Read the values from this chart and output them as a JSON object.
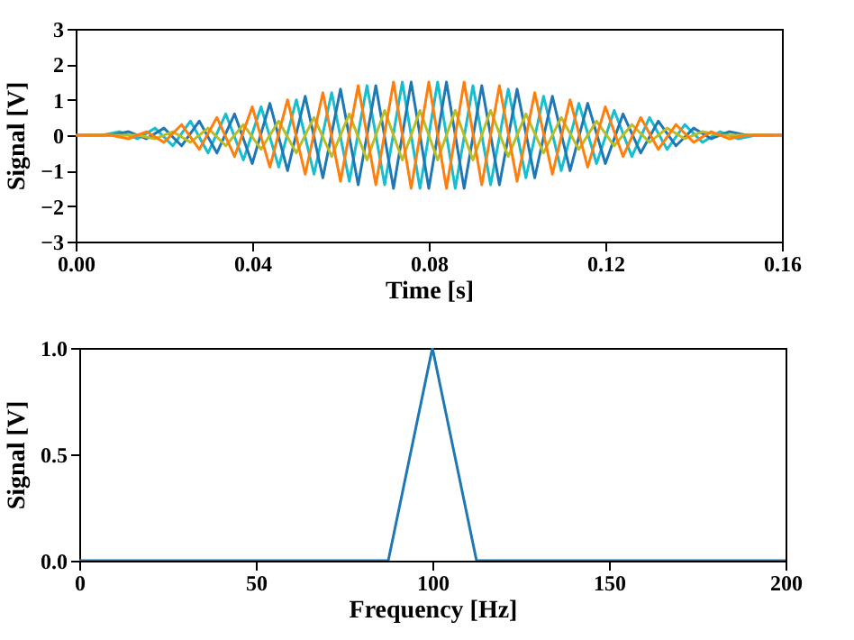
{
  "chart_data": [
    {
      "type": "line",
      "xlabel": "Time [s]",
      "ylabel": "Signal [V]",
      "xlim": [
        0,
        0.16
      ],
      "ylim": [
        -3,
        3
      ],
      "xticks": [
        {
          "value": 0,
          "label": "0.00"
        },
        0.04,
        0.08,
        0.12,
        0.16
      ],
      "yticks": [
        -3,
        -2,
        -1,
        0,
        1,
        2,
        3
      ],
      "series": [
        {
          "color": "#17becf",
          "x": [
            0.002,
            0.006,
            0.01,
            0.014,
            0.018,
            0.022,
            0.026,
            0.03,
            0.034,
            0.038,
            0.042,
            0.046,
            0.05,
            0.054,
            0.058,
            0.062,
            0.066,
            0.07,
            0.074,
            0.078,
            0.082,
            0.086,
            0.09,
            0.094,
            0.098,
            0.102,
            0.106,
            0.11,
            0.114,
            0.118,
            0.122,
            0.126,
            0.13,
            0.134,
            0.138,
            0.142,
            0.146,
            0.15,
            0.154,
            0.158
          ],
          "values": [
            0,
            0,
            0.1,
            -0.1,
            0.2,
            -0.3,
            0.4,
            -0.5,
            0.6,
            -0.7,
            0.8,
            -0.9,
            1,
            -1.1,
            1.2,
            -1.3,
            1.4,
            -1.4,
            1.5,
            -1.5,
            1.5,
            -1.5,
            1.4,
            -1.4,
            1.3,
            -1.2,
            1.1,
            -1,
            0.9,
            -0.8,
            0.7,
            -0.6,
            0.5,
            -0.4,
            0.3,
            -0.2,
            0.1,
            -0.1,
            0,
            0
          ]
        },
        {
          "color": "#1f77b4",
          "x": [
            0,
            0.004,
            0.008,
            0.012,
            0.016,
            0.02,
            0.024,
            0.028,
            0.032,
            0.036,
            0.04,
            0.044,
            0.048,
            0.052,
            0.056,
            0.06,
            0.064,
            0.068,
            0.072,
            0.076,
            0.08,
            0.084,
            0.088,
            0.092,
            0.096,
            0.1,
            0.104,
            0.108,
            0.112,
            0.116,
            0.12,
            0.124,
            0.128,
            0.132,
            0.136,
            0.14,
            0.144,
            0.148,
            0.152,
            0.156,
            0.16
          ],
          "values": [
            0,
            0,
            0,
            0.1,
            -0.1,
            0.2,
            -0.3,
            0.4,
            -0.5,
            0.6,
            -0.8,
            0.9,
            -1,
            1.1,
            -1.2,
            1.3,
            -1.4,
            1.4,
            -1.5,
            1.5,
            -1.5,
            1.5,
            -1.5,
            1.4,
            -1.4,
            1.3,
            -1.2,
            1.1,
            -1,
            0.9,
            -0.8,
            0.6,
            -0.5,
            0.4,
            -0.3,
            0.2,
            -0.1,
            0.1,
            0,
            0,
            0
          ]
        },
        {
          "color": "#bcbd22",
          "x": [
            0.002,
            0.006,
            0.01,
            0.014,
            0.018,
            0.022,
            0.026,
            0.03,
            0.034,
            0.038,
            0.042,
            0.046,
            0.05,
            0.054,
            0.058,
            0.062,
            0.066,
            0.07,
            0.074,
            0.078,
            0.082,
            0.086,
            0.09,
            0.094,
            0.098,
            0.102,
            0.106,
            0.11,
            0.114,
            0.118,
            0.122,
            0.126,
            0.13,
            0.134,
            0.138,
            0.142,
            0.146,
            0.15,
            0.154,
            0.158
          ],
          "values": [
            0,
            0,
            0,
            0,
            -0.1,
            0.1,
            -0.2,
            0.2,
            -0.3,
            0.3,
            -0.4,
            0.4,
            -0.5,
            0.5,
            -0.6,
            0.6,
            -0.7,
            0.7,
            -0.7,
            0.7,
            -0.7,
            0.7,
            -0.7,
            0.7,
            -0.6,
            0.6,
            -0.5,
            0.5,
            -0.4,
            0.4,
            -0.3,
            0.3,
            -0.2,
            0.2,
            -0.1,
            0.1,
            0,
            0,
            0,
            0
          ]
        },
        {
          "color": "#ff7f0e",
          "x": [
            0,
            0.004,
            0.008,
            0.012,
            0.016,
            0.02,
            0.024,
            0.028,
            0.032,
            0.036,
            0.04,
            0.044,
            0.048,
            0.052,
            0.056,
            0.06,
            0.064,
            0.068,
            0.072,
            0.076,
            0.08,
            0.084,
            0.088,
            0.092,
            0.096,
            0.1,
            0.104,
            0.108,
            0.112,
            0.116,
            0.12,
            0.124,
            0.128,
            0.132,
            0.136,
            0.14,
            0.144,
            0.148,
            0.152,
            0.156,
            0.16
          ],
          "values": [
            0,
            0,
            0,
            -0.1,
            0.1,
            -0.2,
            0.3,
            -0.4,
            0.5,
            -0.6,
            0.8,
            -0.9,
            1,
            -1.1,
            1.2,
            -1.3,
            1.4,
            -1.4,
            1.5,
            -1.5,
            1.5,
            -1.5,
            1.5,
            -1.4,
            1.4,
            -1.3,
            1.2,
            -1.1,
            1,
            -0.9,
            0.8,
            -0.6,
            0.5,
            -0.4,
            0.3,
            -0.2,
            0.1,
            -0.1,
            0,
            0,
            0
          ]
        }
      ]
    },
    {
      "type": "line",
      "xlabel": "Frequency [Hz]",
      "ylabel": "Signal [V]",
      "xlim": [
        0,
        200
      ],
      "ylim": [
        0,
        1
      ],
      "xticks": [
        0,
        50,
        100,
        150,
        200
      ],
      "yticks": [
        {
          "value": 0,
          "label": "0.0"
        },
        0.5,
        {
          "value": 1,
          "label": "1.0"
        }
      ],
      "series": [
        {
          "color": "#1f77b4",
          "x": [
            0,
            12.5,
            25,
            37.5,
            50,
            62.5,
            75,
            87.5,
            100,
            112.5,
            125,
            137.5,
            150,
            162.5,
            175,
            187.5,
            200
          ],
          "values": [
            0,
            0,
            0,
            0,
            0,
            0,
            0,
            0,
            1,
            0,
            0,
            0,
            0,
            0,
            0,
            0,
            0
          ]
        }
      ]
    }
  ]
}
